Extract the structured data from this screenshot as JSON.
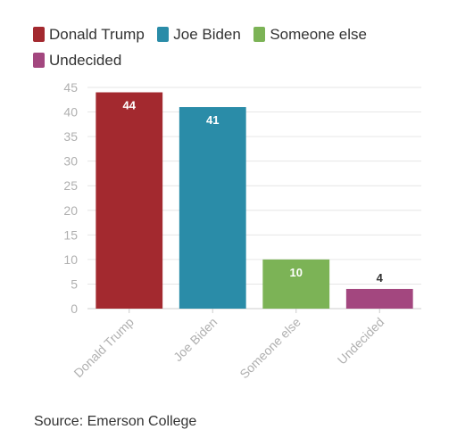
{
  "chart_data": {
    "type": "bar",
    "categories": [
      "Donald Trump",
      "Joe Biden",
      "Someone else",
      "Undecided"
    ],
    "values": [
      44,
      41,
      10,
      4
    ],
    "colors": [
      "#a3292f",
      "#2a8ca8",
      "#7cb356",
      "#a3477f"
    ],
    "title": "",
    "xlabel": "",
    "ylabel": "",
    "ylim": [
      0,
      45
    ],
    "yticks": [
      0,
      5,
      10,
      15,
      20,
      25,
      30,
      35,
      40,
      45
    ],
    "grid": true,
    "legend": "top-left",
    "data_labels": true
  },
  "legend": {
    "items": [
      {
        "label": "Donald Trump",
        "color": "#a3292f"
      },
      {
        "label": "Joe Biden",
        "color": "#2a8ca8"
      },
      {
        "label": "Someone else",
        "color": "#7cb356"
      },
      {
        "label": "Undecided",
        "color": "#a3477f"
      }
    ]
  },
  "source": "Source: Emerson College"
}
